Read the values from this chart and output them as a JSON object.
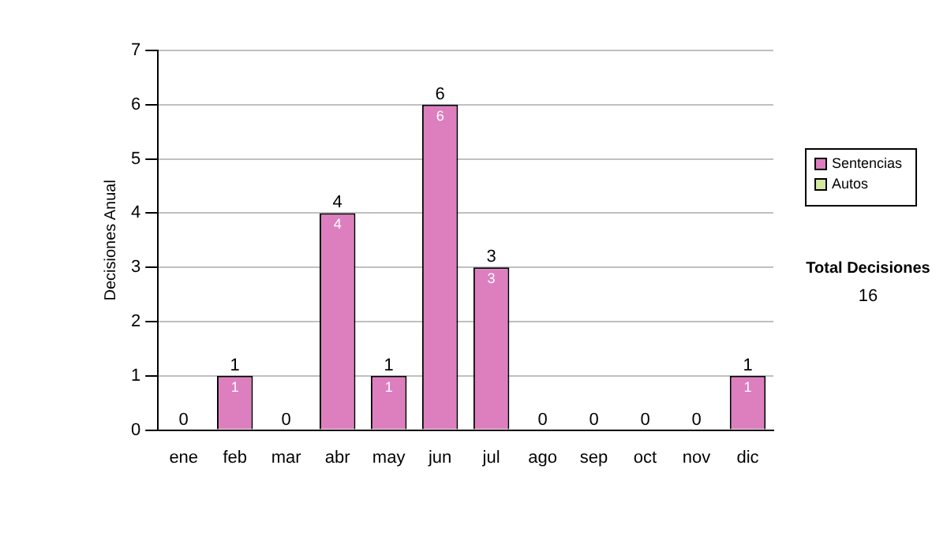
{
  "chart_data": {
    "type": "bar",
    "stacked": true,
    "ylabel": "Decisiones Anual",
    "categories": [
      "ene",
      "feb",
      "mar",
      "abr",
      "may",
      "jun",
      "jul",
      "ago",
      "sep",
      "oct",
      "nov",
      "dic"
    ],
    "series": [
      {
        "name": "Sentencias",
        "color": "#dd7fbf",
        "values": [
          0,
          1,
          0,
          4,
          1,
          6,
          3,
          0,
          0,
          0,
          0,
          1
        ],
        "value_labels": [
          null,
          "1",
          null,
          "4",
          "1",
          "6",
          "3",
          null,
          null,
          null,
          null,
          "1"
        ]
      },
      {
        "name": "Autos",
        "color": "#d4e8a0",
        "values": [
          0,
          0,
          0,
          0,
          0,
          0,
          0,
          0,
          0,
          0,
          0,
          0
        ]
      }
    ],
    "totals": [
      "0",
      "1",
      "0",
      "4",
      "1",
      "6",
      "3",
      "0",
      "0",
      "0",
      "0",
      "1"
    ],
    "ylim": [
      0,
      7
    ],
    "yticks": [
      0,
      1,
      2,
      3,
      4,
      5,
      6,
      7
    ],
    "grid": "y",
    "legend": "right",
    "annotations": [
      "Total Decisiones",
      "16"
    ]
  }
}
